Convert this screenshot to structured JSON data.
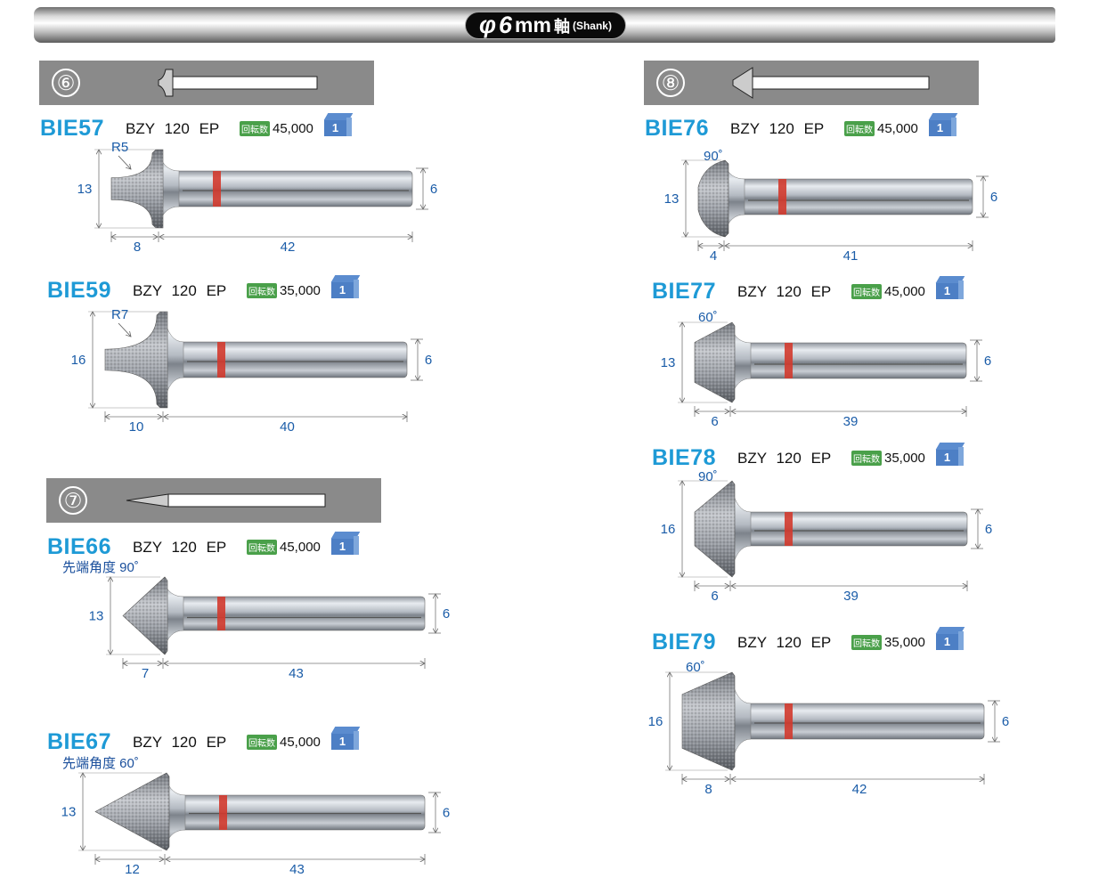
{
  "header": {
    "symbol": "φ",
    "size": "6",
    "unit": "mm",
    "kanji": "軸",
    "english": "(Shank)"
  },
  "sections": [
    {
      "number": "⑥",
      "shape": "rounded"
    },
    {
      "number": "⑦",
      "shape": "cone"
    },
    {
      "number": "⑧",
      "shape": "cone"
    }
  ],
  "rpm_label": "回転数",
  "package_qty": "1",
  "colors": {
    "code": "#1e9ad6",
    "dimension": "#1a5ca8",
    "band": "#d23a2e",
    "section": "#8a8a8a",
    "rpm_badge": "#4aa04a",
    "box": "#4d7fc5"
  },
  "products": [
    {
      "code": "BIE57",
      "grade": "BZY 120 EP",
      "rpm": "45,000",
      "shape": "rounded",
      "tip": "R5",
      "head_dia": "13",
      "shank_dia": "6",
      "head_len": "8",
      "shank_len": "42"
    },
    {
      "code": "BIE59",
      "grade": "BZY 120 EP",
      "rpm": "35,000",
      "shape": "rounded",
      "tip": "R7",
      "head_dia": "16",
      "shank_dia": "6",
      "head_len": "10",
      "shank_len": "40"
    },
    {
      "code": "BIE66",
      "grade": "BZY 120 EP",
      "rpm": "45,000",
      "shape": "cone",
      "note": "先端角度 90˚",
      "head_dia": "13",
      "shank_dia": "6",
      "head_len": "7",
      "shank_len": "43"
    },
    {
      "code": "BIE67",
      "grade": "BZY 120 EP",
      "rpm": "45,000",
      "shape": "cone",
      "note": "先端角度 60˚",
      "head_dia": "13",
      "shank_dia": "6",
      "head_len": "12",
      "shank_len": "43"
    },
    {
      "code": "BIE76",
      "grade": "BZY 120 EP",
      "rpm": "45,000",
      "shape": "dome",
      "tip": "90˚",
      "head_dia": "13",
      "shank_dia": "6",
      "head_len": "4",
      "shank_len": "41"
    },
    {
      "code": "BIE77",
      "grade": "BZY 120 EP",
      "rpm": "45,000",
      "shape": "truncated-cone",
      "tip": "60˚",
      "head_dia": "13",
      "shank_dia": "6",
      "head_len": "6",
      "shank_len": "39"
    },
    {
      "code": "BIE78",
      "grade": "BZY 120 EP",
      "rpm": "35,000",
      "shape": "truncated-cone",
      "tip": "90˚",
      "head_dia": "16",
      "shank_dia": "6",
      "head_len": "6",
      "shank_len": "39"
    },
    {
      "code": "BIE79",
      "grade": "BZY 120 EP",
      "rpm": "35,000",
      "shape": "truncated-cone",
      "tip": "60˚",
      "head_dia": "16",
      "shank_dia": "6",
      "head_len": "8",
      "shank_len": "42"
    }
  ]
}
